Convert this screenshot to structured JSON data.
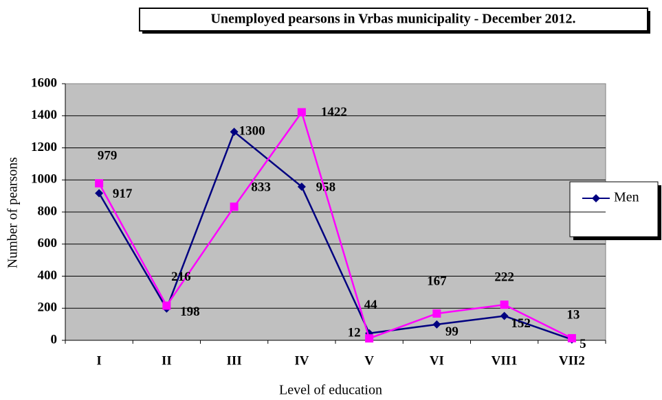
{
  "chart_data": {
    "type": "line",
    "title": "Unemployed pearsons in Vrbas municipality - December 2012.",
    "x_label": "Level of education",
    "y_label": "Number of pearsons",
    "categories": [
      "I",
      "II",
      "III",
      "IV",
      "V",
      "VI",
      "VII1",
      "VII2"
    ],
    "series": [
      {
        "name": "Men",
        "color": "#000080",
        "marker": "diamond",
        "values": [
          917,
          198,
          1300,
          958,
          44,
          99,
          152,
          5
        ]
      },
      {
        "color": "#ff00ff",
        "marker": "square",
        "values": [
          979,
          216,
          833,
          1422,
          12,
          167,
          222,
          13
        ]
      }
    ],
    "ylim": [
      0,
      1600
    ],
    "yticks": [
      0,
      200,
      400,
      600,
      800,
      1000,
      1200,
      1400,
      1600
    ],
    "grid": true
  }
}
